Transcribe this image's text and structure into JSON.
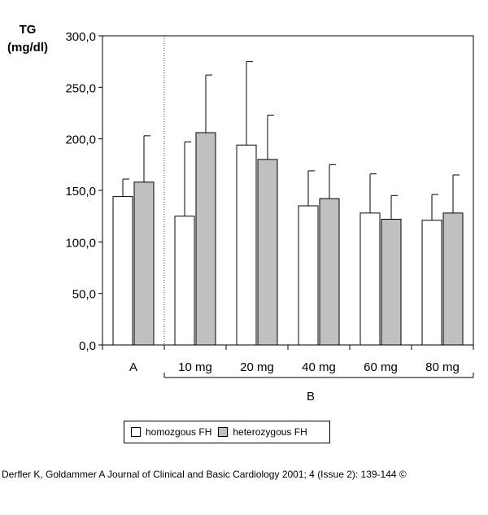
{
  "chart_data": {
    "type": "bar",
    "title": "",
    "ylabel_line1": "TG",
    "ylabel_line2": "(mg/dl)",
    "xlabel": "",
    "ylim": [
      0,
      300
    ],
    "yticks": [
      "0,0",
      "50,0",
      "100,0",
      "150,0",
      "200,0",
      "250,0",
      "300,0"
    ],
    "ytick_values": [
      0,
      50,
      100,
      150,
      200,
      250,
      300
    ],
    "categories": [
      "A",
      "10 mg",
      "20 mg",
      "40 mg",
      "60 mg",
      "80 mg"
    ],
    "group_label": "B",
    "separator_after_category": 0,
    "series": [
      {
        "name": "homozgous FH",
        "color": "#ffffff",
        "values": [
          144,
          125,
          194,
          135,
          128,
          121
        ],
        "error_upper": [
          161,
          197,
          275,
          169,
          166,
          146
        ]
      },
      {
        "name": "heterozygous FH",
        "color": "#c0c0c0",
        "values": [
          158,
          206,
          180,
          142,
          122,
          128
        ],
        "error_upper": [
          203,
          262,
          223,
          175,
          145,
          165
        ]
      }
    ]
  },
  "legend": {
    "homozygous_label": "homozgous FH",
    "heterozygous_label": "heterozygous FH"
  },
  "citation": "Derfler K, Goldammer A Journal of Clinical and Basic Cardiology 2001; 4 (Issue 2): 139-144 ©"
}
